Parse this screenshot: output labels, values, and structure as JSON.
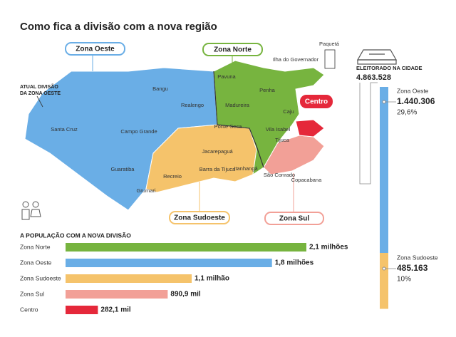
{
  "title": "Como fica a divisão com a nova região",
  "map": {
    "annotation": [
      "ATUAL DIVISÃO",
      "DA ZONA OESTE"
    ],
    "zones": [
      {
        "name": "Zona Oeste",
        "color": "#6aaee6"
      },
      {
        "name": "Zona Norte",
        "color": "#77b43f"
      },
      {
        "name": "Zona Sudoeste",
        "color": "#f5c36b"
      },
      {
        "name": "Zona Sul",
        "color": "#f2a097"
      },
      {
        "name": "Centro",
        "color": "#e5283a"
      }
    ],
    "places": [
      "Bangu",
      "Realengo",
      "Santa Cruz",
      "Campo Grande",
      "Guaratiba",
      "Grumari",
      "Recreio",
      "Jacarepaguá",
      "Barra da Tijuca",
      "Itanhangá",
      "Ponte Seca",
      "Pavuna",
      "Penha",
      "Madureira",
      "Caju",
      "Vila Isabel",
      "Tijuca",
      "Copacabana",
      "São Conrado",
      "Ilha do Governador",
      "Paquetá"
    ]
  },
  "population": {
    "title": "A POPULAÇÃO COM A NOVA DIVISÃO",
    "categories": [
      "Zona Norte",
      "Zona Oeste",
      "Zona Sudoeste",
      "Zona Sul",
      "Centro"
    ],
    "values": [
      2100000,
      1800000,
      1100000,
      890900,
      282100
    ],
    "value_labels": [
      "2,1 milhões",
      "1,8 milhões",
      "1,1 milhão",
      "890,9 mil",
      "282,1 mil"
    ],
    "colors": [
      "#77b43f",
      "#6aaee6",
      "#f5c36b",
      "#f2a097",
      "#e5283a"
    ]
  },
  "electorate": {
    "title": "ELEITORADO NA CIDADE",
    "total": {
      "value": 4863528,
      "label": "4.863.528"
    },
    "segments": [
      {
        "name": "Zona Oeste",
        "color": "#6aaee6",
        "value": {
          "value": 1440306,
          "label": "1.440.306"
        },
        "share": {
          "value": 29.6,
          "label": "29,6%"
        }
      },
      {
        "name": "Zona Sudoeste",
        "color": "#f5c36b",
        "value": {
          "value": 485163,
          "label": "485.163"
        },
        "share": {
          "value": 10,
          "label": "10%"
        }
      }
    ]
  }
}
